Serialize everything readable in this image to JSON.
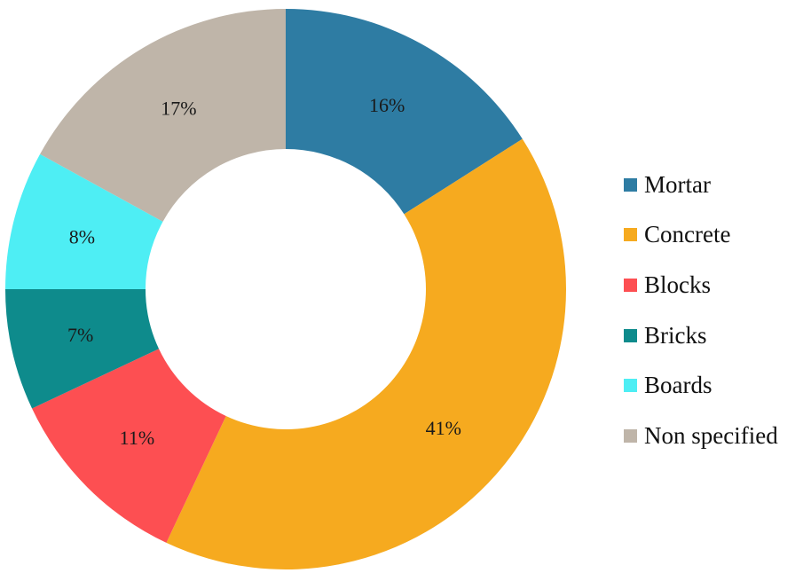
{
  "chart_data": {
    "type": "pie",
    "variant": "donut",
    "title": "",
    "categories": [
      "Mortar",
      "Concrete",
      "Blocks",
      "Bricks",
      "Boards",
      "Non specified"
    ],
    "values": [
      16,
      41,
      11,
      7,
      8,
      17
    ],
    "labels": [
      "16%",
      "41%",
      "11%",
      "7%",
      "8%",
      "17%"
    ],
    "unit": "%",
    "colors": [
      "#2e7ca3",
      "#f6aa1f",
      "#fd4f52",
      "#0e8b8c",
      "#4eeef4",
      "#bfb5a9"
    ],
    "start_angle_deg": 0,
    "direction": "clockwise",
    "legend": {
      "position": "right",
      "items": [
        {
          "label": "Mortar",
          "color": "#2e7ca3"
        },
        {
          "label": "Concrete",
          "color": "#f6aa1f"
        },
        {
          "label": "Blocks",
          "color": "#fd4f52"
        },
        {
          "label": "Bricks",
          "color": "#0e8b8c"
        },
        {
          "label": "Boards",
          "color": "#4eeef4"
        },
        {
          "label": "Non specified",
          "color": "#bfb5a9"
        }
      ]
    }
  }
}
